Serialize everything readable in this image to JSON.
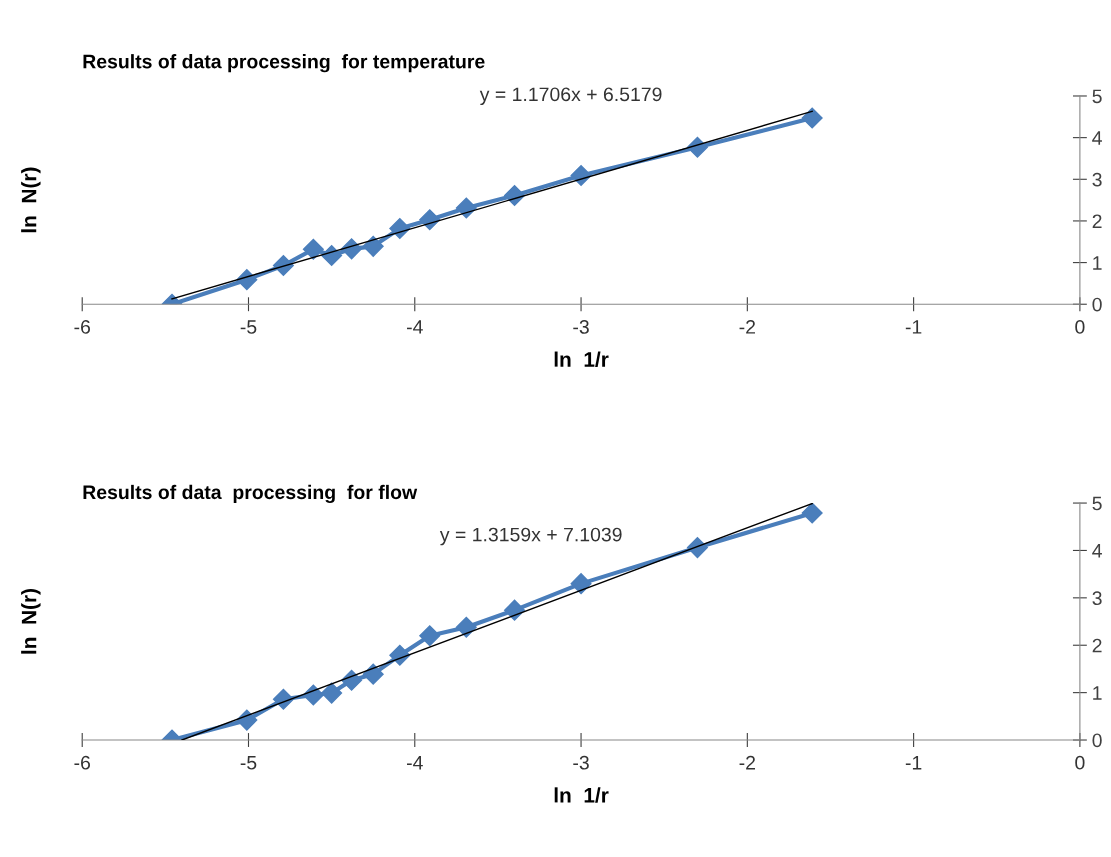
{
  "chart_data": [
    {
      "type": "line",
      "title": "Results of data processing  for temperature",
      "xlabel": "ln  1/r",
      "ylabel": "ln  N(r)",
      "annotations": [
        "y = 1.1706x + 6.5179"
      ],
      "x": [
        -5.46,
        -5.01,
        -4.79,
        -4.61,
        -4.5,
        -4.38,
        -4.25,
        -4.09,
        -3.91,
        -3.69,
        -3.4,
        -3.0,
        -2.3,
        -1.61
      ],
      "series": [
        {
          "color": "#4a7ebb",
          "marker": "diamond",
          "values": [
            0,
            0.59,
            0.93,
            1.32,
            1.17,
            1.33,
            1.39,
            1.82,
            2.03,
            2.31,
            2.61,
            3.09,
            3.77,
            4.47
          ]
        },
        {
          "type": "line",
          "color": "#000000",
          "marker": "none",
          "x": [
            -5.46,
            -1.61
          ],
          "values": [
            0.13,
            4.63
          ]
        }
      ],
      "xlim": [
        -6,
        0
      ],
      "xticks": [
        -6,
        -5,
        -4,
        -3,
        -2,
        -1,
        0
      ],
      "ylim": [
        0,
        5
      ],
      "yticks": [
        0,
        1,
        2,
        3,
        4,
        5
      ],
      "grid": false
    },
    {
      "type": "line",
      "title": "Results of data  processing  for flow",
      "xlabel": "ln  1/r",
      "ylabel": "ln  N(r)",
      "annotations": [
        "y = 1.3159x + 7.1039"
      ],
      "x": [
        -5.46,
        -5.01,
        -4.79,
        -4.61,
        -4.5,
        -4.38,
        -4.25,
        -4.09,
        -3.91,
        -3.69,
        -3.4,
        -3.0,
        -2.3,
        -1.61
      ],
      "series": [
        {
          "color": "#4a7ebb",
          "marker": "diamond",
          "values": [
            0,
            0.42,
            0.86,
            0.95,
            0.99,
            1.26,
            1.39,
            1.79,
            2.2,
            2.38,
            2.74,
            3.3,
            4.06,
            4.79
          ]
        },
        {
          "type": "line",
          "color": "#000000",
          "marker": "none",
          "x": [
            -5.4,
            -1.61
          ],
          "values": [
            0,
            4.99
          ]
        }
      ],
      "xlim": [
        -6,
        0
      ],
      "xticks": [
        -6,
        -5,
        -4,
        -3,
        -2,
        -1,
        0
      ],
      "ylim": [
        0,
        5
      ],
      "yticks": [
        0,
        1,
        2,
        3,
        4,
        5
      ],
      "grid": false
    }
  ]
}
